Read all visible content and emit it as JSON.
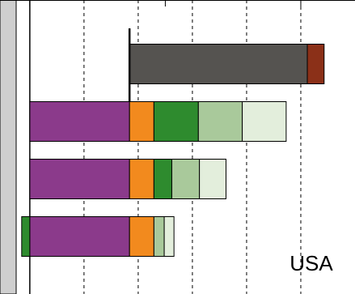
{
  "chart_data": {
    "type": "stacked_barh",
    "annotation": "USA",
    "categories": [
      null,
      null,
      null,
      null
    ],
    "bar_starts": [
      1.84,
      0,
      0,
      0
    ],
    "reference_line": 1.84,
    "series": [
      {
        "color": "#8b3a8b",
        "values": [
          null,
          1.84,
          1.84,
          1.84
        ]
      },
      {
        "color": "#f28a1e",
        "values": [
          null,
          0.45,
          0.45,
          0.45
        ]
      },
      {
        "color": "#2e8b2e",
        "values": [
          null,
          0.82,
          0.33,
          -0.15
        ]
      },
      {
        "color": "#a9c99b",
        "values": [
          null,
          0.81,
          0.51,
          0.19
        ]
      },
      {
        "color": "#e3eedc",
        "values": [
          null,
          0.81,
          0.49,
          0.18
        ]
      },
      {
        "color": "#555350",
        "values": [
          3.28,
          null,
          null,
          null
        ]
      },
      {
        "color": "#8b3018",
        "values": [
          0.31,
          null,
          null,
          null
        ]
      }
    ],
    "xlim": [
      -0.55,
      6
    ],
    "xticks": [
      0,
      2.5,
      5
    ],
    "grid_lines": [
      1,
      2,
      3,
      4,
      5
    ]
  }
}
